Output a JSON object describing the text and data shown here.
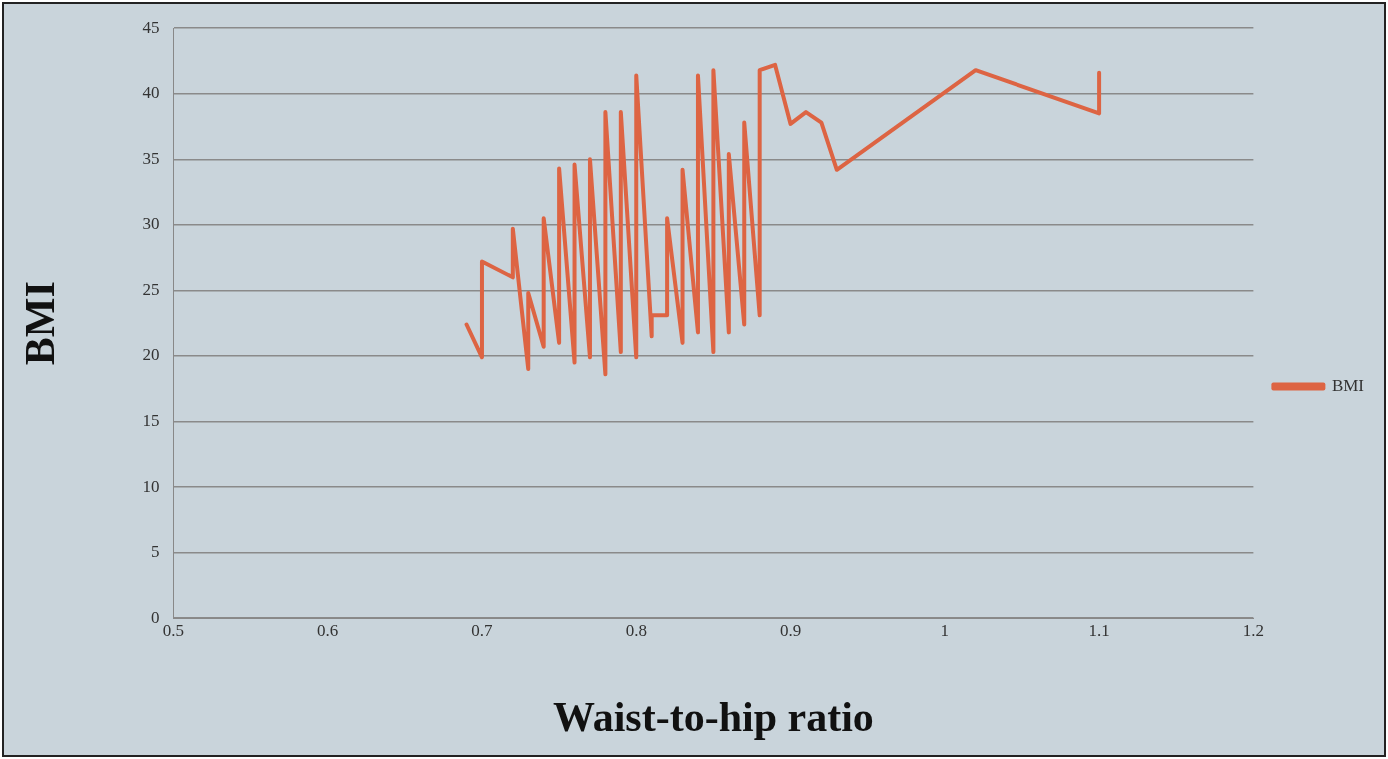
{
  "chart_data": {
    "type": "line",
    "xlabel": "Waist-to-hip ratio",
    "ylabel": "BMI",
    "xlim": [
      0.5,
      1.2
    ],
    "xticks": [
      0.5,
      0.6,
      0.7,
      0.8,
      0.9,
      1,
      1.1,
      1.2
    ],
    "ylim": [
      0,
      45
    ],
    "yticks": [
      0,
      5,
      10,
      15,
      20,
      25,
      30,
      35,
      40,
      45
    ],
    "grid": "y",
    "legend": "right",
    "marker": "none",
    "line_style": "solid",
    "series": [
      {
        "name": "BMI",
        "color": "#dd6443",
        "x": [
          0.69,
          0.7,
          0.7,
          0.72,
          0.72,
          0.73,
          0.73,
          0.74,
          0.74,
          0.75,
          0.75,
          0.76,
          0.76,
          0.77,
          0.77,
          0.78,
          0.78,
          0.79,
          0.79,
          0.8,
          0.8,
          0.81,
          0.81,
          0.82,
          0.82,
          0.83,
          0.83,
          0.84,
          0.84,
          0.85,
          0.85,
          0.86,
          0.86,
          0.87,
          0.87,
          0.88,
          0.88,
          0.89,
          0.9,
          0.91,
          0.92,
          0.93,
          1.02,
          1.1,
          1.1
        ],
        "values": [
          22.4,
          19.9,
          27.2,
          26.0,
          29.7,
          19.0,
          24.8,
          20.7,
          30.5,
          21.0,
          34.3,
          19.5,
          34.6,
          19.9,
          35.0,
          18.6,
          38.6,
          20.3,
          38.6,
          19.9,
          41.4,
          21.5,
          23.1,
          23.1,
          30.5,
          21.0,
          34.2,
          21.8,
          41.4,
          20.3,
          41.8,
          21.8,
          35.4,
          22.4,
          37.8,
          23.1,
          41.8,
          42.2,
          37.7,
          38.6,
          37.8,
          34.2,
          41.8,
          38.5,
          41.6
        ]
      }
    ]
  }
}
